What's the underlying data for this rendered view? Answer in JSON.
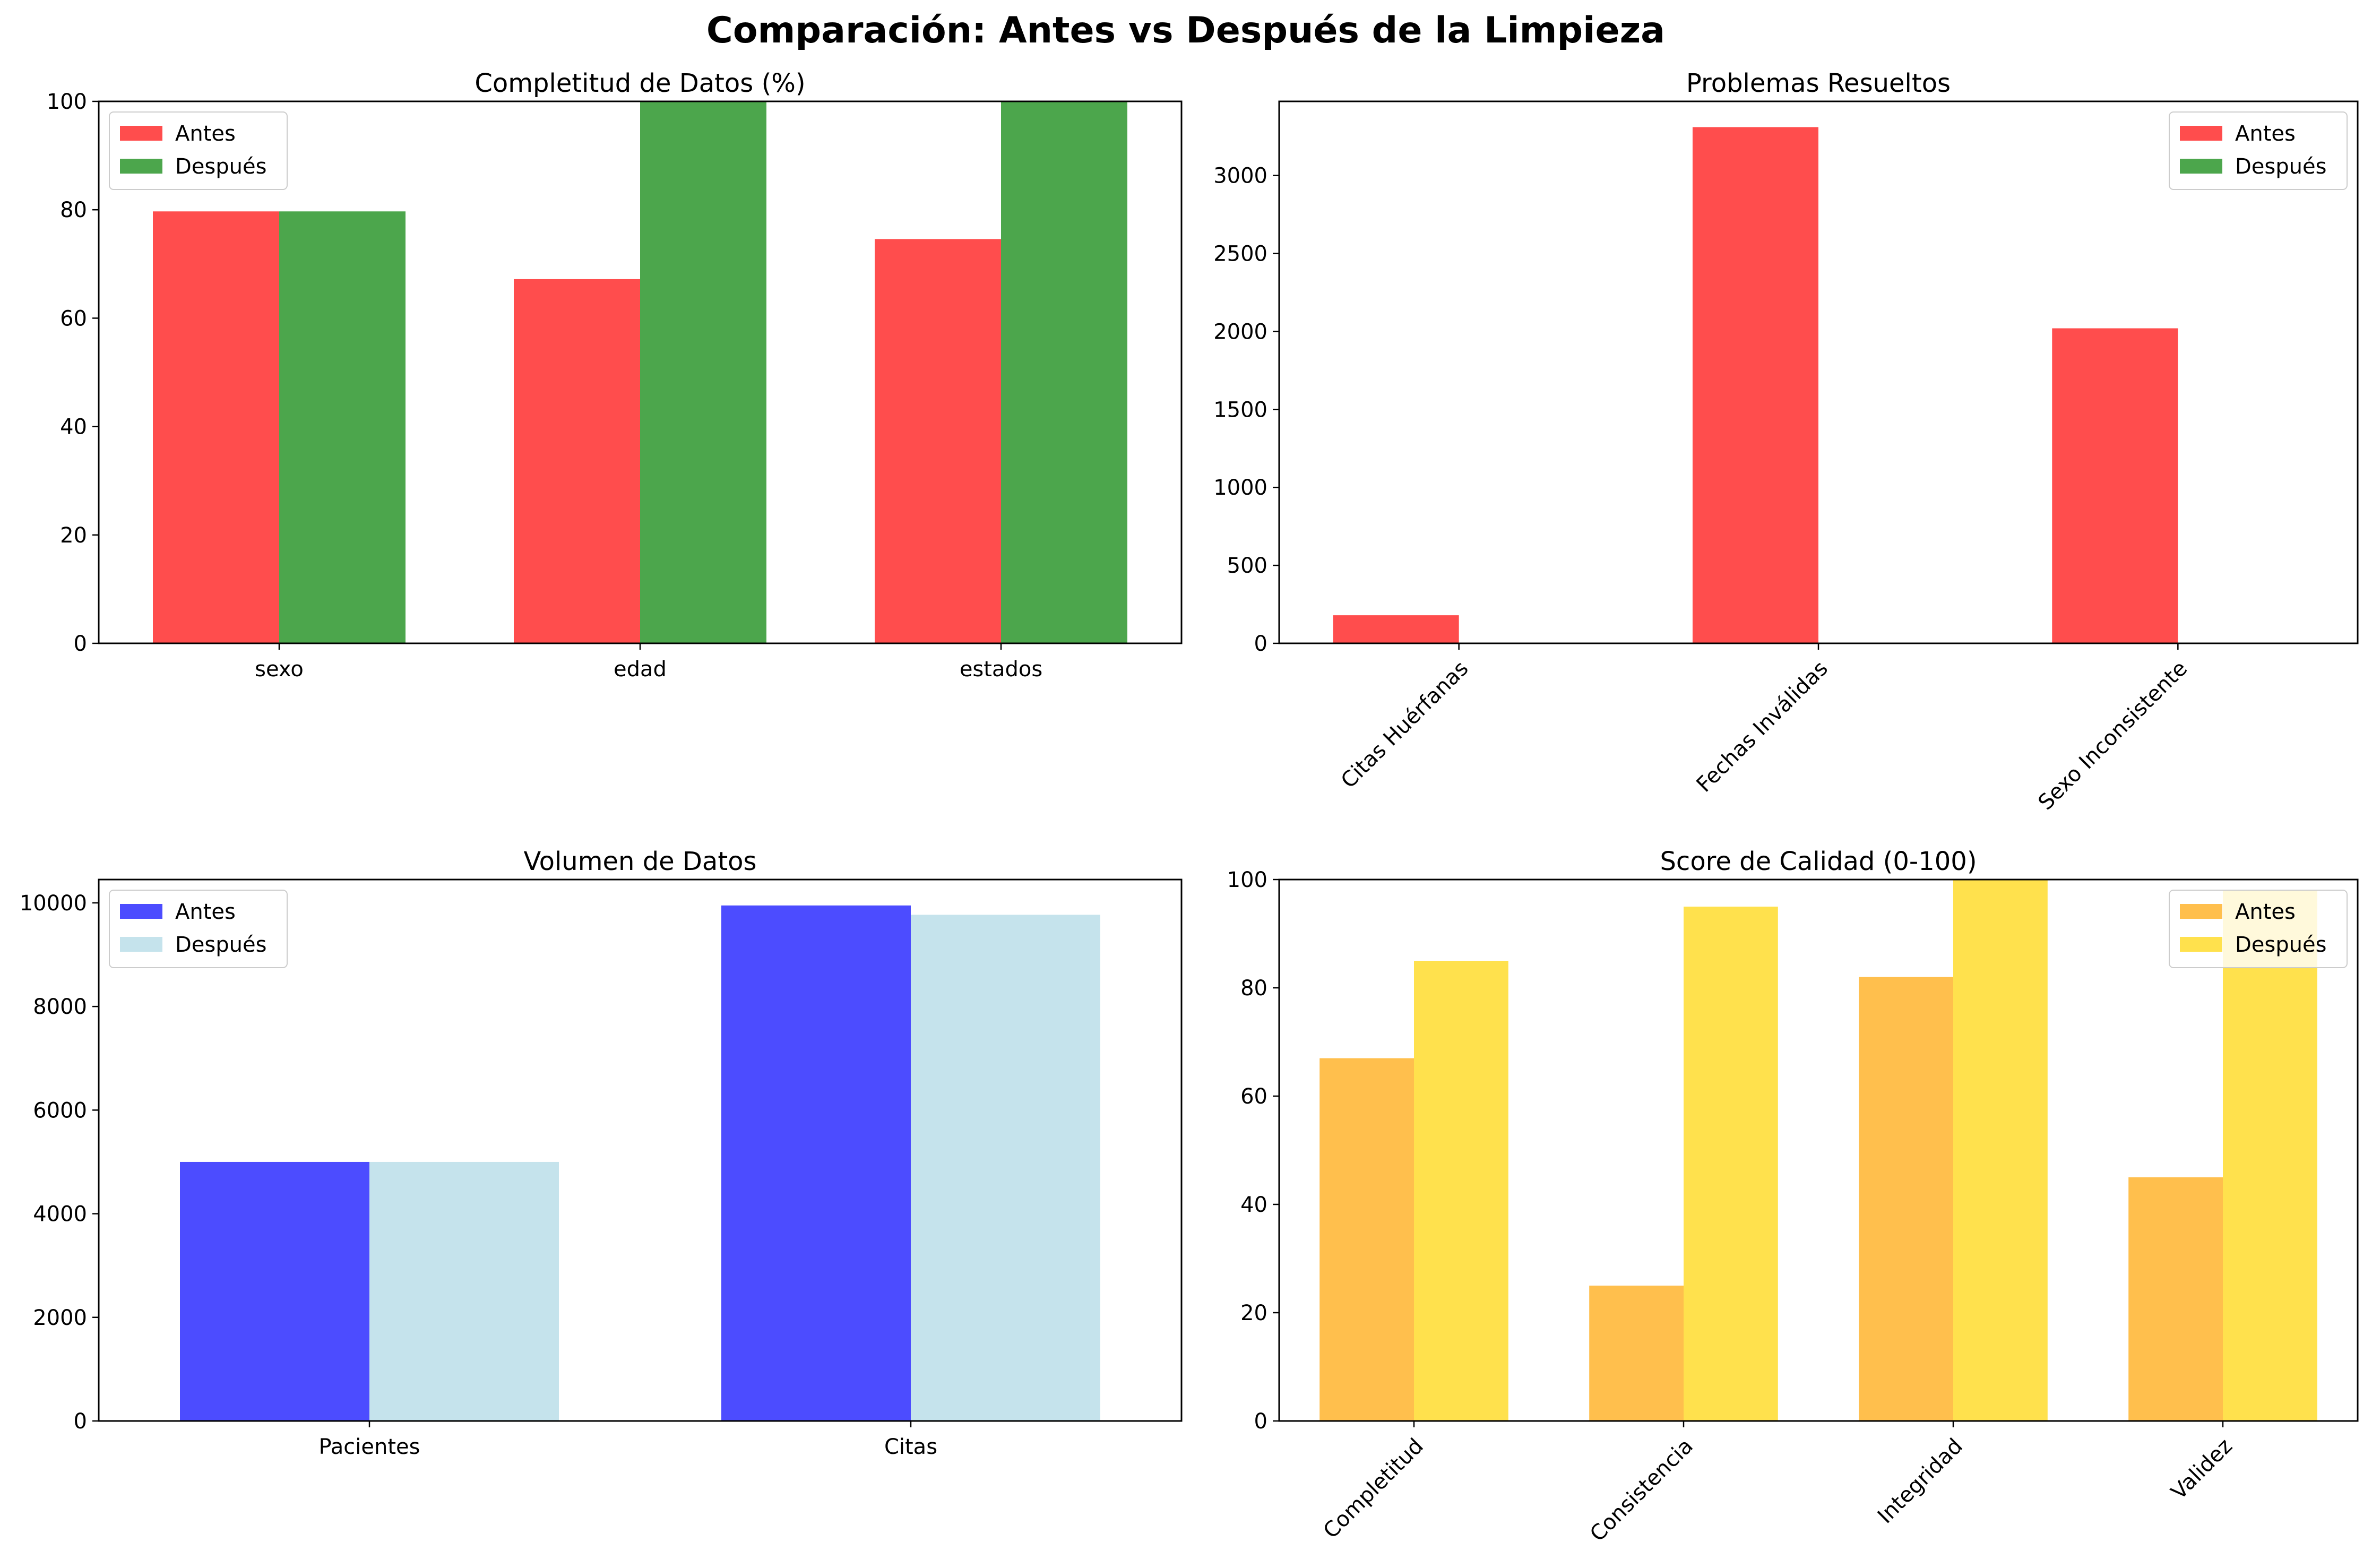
{
  "figure": {
    "title": "Comparación: Antes vs Después de la Limpieza"
  },
  "chart_data": [
    {
      "type": "bar",
      "title": "Completitud de Datos (%)",
      "categories": [
        "sexo",
        "edad",
        "estados"
      ],
      "series": [
        {
          "name": "Antes",
          "values": [
            79.7,
            67.2,
            74.6
          ],
          "color": "#ff4d4d"
        },
        {
          "name": "Después",
          "values": [
            79.7,
            100,
            100
          ],
          "color": "#4ca64c"
        }
      ],
      "ylim": [
        0,
        100
      ],
      "yticks": [
        0,
        20,
        40,
        60,
        80,
        100
      ],
      "rotate_xticks": false,
      "legend": "top-left",
      "grid": false
    },
    {
      "type": "bar",
      "title": "Problemas Resueltos",
      "categories": [
        "Citas Huérfanas",
        "Fechas Inválidas",
        "Sexo Inconsistente"
      ],
      "series": [
        {
          "name": "Antes",
          "values": [
            180,
            3310,
            2020
          ],
          "color": "#ff4d4d"
        },
        {
          "name": "Después",
          "values": [
            0,
            0,
            0
          ],
          "color": "#4ca64c"
        }
      ],
      "ylim": [
        0,
        3475
      ],
      "yticks": [
        0,
        500,
        1000,
        1500,
        2000,
        2500,
        3000
      ],
      "rotate_xticks": true,
      "legend": "top-right",
      "grid": false
    },
    {
      "type": "bar",
      "title": "Volumen de Datos",
      "categories": [
        "Pacientes",
        "Citas"
      ],
      "series": [
        {
          "name": "Antes",
          "values": [
            5000,
            9950
          ],
          "color": "#4c4cff"
        },
        {
          "name": "Después",
          "values": [
            5000,
            9770
          ],
          "color": "#c5e3ec"
        }
      ],
      "ylim": [
        0,
        10450
      ],
      "yticks": [
        0,
        2000,
        4000,
        6000,
        8000,
        10000
      ],
      "rotate_xticks": false,
      "legend": "top-left",
      "grid": false
    },
    {
      "type": "bar",
      "title": "Score de Calidad (0-100)",
      "categories": [
        "Completitud",
        "Consistencia",
        "Integridad",
        "Validez"
      ],
      "series": [
        {
          "name": "Antes",
          "values": [
            67,
            25,
            82,
            45
          ],
          "color": "#ffbf4d"
        },
        {
          "name": "Después",
          "values": [
            85,
            95,
            100,
            98
          ],
          "color": "#ffe14d"
        }
      ],
      "ylim": [
        0,
        100
      ],
      "yticks": [
        0,
        20,
        40,
        60,
        80,
        100
      ],
      "rotate_xticks": true,
      "legend": "top-right",
      "grid": false
    }
  ]
}
